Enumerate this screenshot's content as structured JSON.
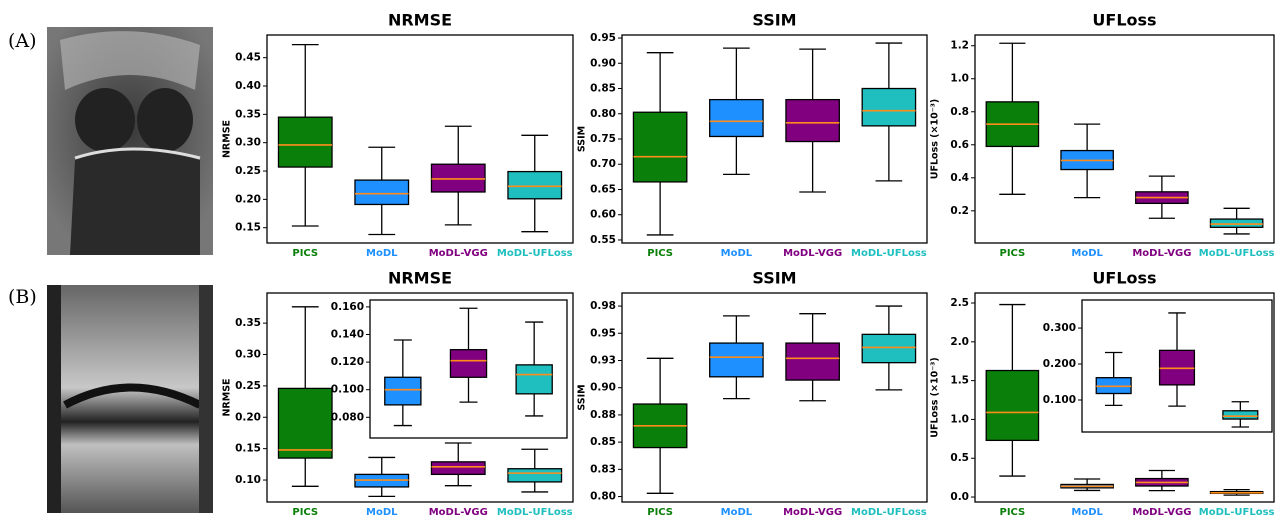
{
  "row_labels": [
    "(A)",
    "(B)"
  ],
  "chart_data": [
    {
      "type": "box",
      "title": "NRMSE",
      "ylabel": "NRMSE",
      "categories": [
        "PICS",
        "MoDL",
        "MoDL-VGG",
        "MoDL-UFLoss"
      ],
      "colors": [
        "#0a800a",
        "#1e90ff",
        "#800080",
        "#1fbfbf"
      ],
      "median_color": "#ff8c1a",
      "stats": [
        [
          0.153,
          0.257,
          0.296,
          0.345,
          0.473
        ],
        [
          0.138,
          0.191,
          0.21,
          0.234,
          0.292
        ],
        [
          0.155,
          0.213,
          0.236,
          0.262,
          0.329
        ],
        [
          0.143,
          0.201,
          0.223,
          0.249,
          0.313
        ]
      ],
      "ylim": [
        0.123,
        0.49
      ],
      "yticks": [
        {
          "value": 0.15,
          "label": "0.15"
        },
        {
          "value": 0.2,
          "label": "0.20"
        },
        {
          "value": 0.25,
          "label": "0.25"
        },
        {
          "value": 0.3,
          "label": "0.30"
        },
        {
          "value": 0.35,
          "label": "0.35"
        },
        {
          "value": 0.4,
          "label": "0.40"
        },
        {
          "value": 0.45,
          "label": "0.45"
        }
      ]
    },
    {
      "type": "box",
      "title": "SSIM",
      "ylabel": "SSIM",
      "categories": [
        "PICS",
        "MoDL",
        "MoDL-VGG",
        "MoDL-UFLoss"
      ],
      "colors": [
        "#0a800a",
        "#1e90ff",
        "#800080",
        "#1fbfbf"
      ],
      "median_color": "#ff8c1a",
      "stats": [
        [
          0.56,
          0.665,
          0.715,
          0.803,
          0.921
        ],
        [
          0.68,
          0.755,
          0.785,
          0.828,
          0.93
        ],
        [
          0.645,
          0.745,
          0.782,
          0.828,
          0.928
        ],
        [
          0.667,
          0.776,
          0.806,
          0.85,
          0.94
        ]
      ],
      "ylim": [
        0.544,
        0.956
      ],
      "yticks": [
        {
          "value": 0.55,
          "label": "0.55"
        },
        {
          "value": 0.6,
          "label": "0.60"
        },
        0.65,
        {
          "value": 0.7,
          "label": "0.70"
        },
        0.75,
        {
          "value": 0.8,
          "label": "0.80"
        },
        0.85,
        {
          "value": 0.9,
          "label": "0.90"
        },
        0.95
      ]
    },
    {
      "type": "box",
      "title": "UFLoss",
      "ylabel": "UFLoss (×10⁻³)",
      "categories": [
        "PICS",
        "MoDL",
        "MoDL-VGG",
        "MoDL-UFLoss"
      ],
      "colors": [
        "#0a800a",
        "#1e90ff",
        "#800080",
        "#1fbfbf"
      ],
      "median_color": "#ff8c1a",
      "stats": [
        [
          0.3,
          0.59,
          0.725,
          0.86,
          1.215
        ],
        [
          0.28,
          0.45,
          0.505,
          0.565,
          0.725
        ],
        [
          0.155,
          0.245,
          0.28,
          0.315,
          0.41
        ],
        [
          0.06,
          0.1,
          0.12,
          0.15,
          0.215
        ]
      ],
      "ylim": [
        0.005,
        1.265
      ],
      "yticks": [
        0.2,
        0.4,
        0.6,
        0.8,
        {
          "value": 1,
          "label": "1.0"
        },
        1.2
      ]
    },
    {
      "type": "box",
      "title": "NRMSE",
      "ylabel": "NRMSE",
      "categories": [
        "PICS",
        "MoDL",
        "MoDL-VGG",
        "MoDL-UFLoss"
      ],
      "colors": [
        "#0a800a",
        "#1e90ff",
        "#800080",
        "#1fbfbf"
      ],
      "median_color": "#ff8c1a",
      "stats": [
        [
          0.09,
          0.135,
          0.148,
          0.246,
          0.376
        ],
        [
          0.074,
          0.089,
          0.1,
          0.109,
          0.136
        ],
        [
          0.091,
          0.109,
          0.121,
          0.129,
          0.159
        ],
        [
          0.081,
          0.097,
          0.111,
          0.118,
          0.149
        ]
      ],
      "ylim": [
        0.065,
        0.398
      ],
      "yticks": [
        {
          "value": 0.1,
          "label": "0.10"
        },
        0.15,
        {
          "value": 0.2,
          "label": "0.20"
        },
        0.25,
        {
          "value": 0.3,
          "label": "0.30"
        },
        0.35
      ],
      "inset": {
        "ylim": [
          0.065,
          0.165
        ],
        "yticks": [
          {
            "value": 0.08,
            "label": "0.080"
          },
          {
            "value": 0.1,
            "label": "0.100"
          },
          {
            "value": 0.12,
            "label": "0.120"
          },
          {
            "value": 0.14,
            "label": "0.140"
          },
          {
            "value": 0.16,
            "label": "0.160"
          }
        ]
      }
    },
    {
      "type": "box",
      "title": "SSIM",
      "ylabel": "SSIM",
      "categories": [
        "PICS",
        "MoDL",
        "MoDL-VGG",
        "MoDL-UFLoss"
      ],
      "colors": [
        "#0a800a",
        "#1e90ff",
        "#800080",
        "#1fbfbf"
      ],
      "median_color": "#ff8c1a",
      "stats": [
        [
          0.803,
          0.845,
          0.865,
          0.885,
          0.927
        ],
        [
          0.89,
          0.91,
          0.928,
          0.941,
          0.966
        ],
        [
          0.888,
          0.907,
          0.927,
          0.941,
          0.968
        ],
        [
          0.898,
          0.923,
          0.937,
          0.949,
          0.975
        ]
      ],
      "ylim": [
        0.795,
        0.987
      ],
      "yticks": [
        {
          "value": 0.8,
          "label": "0.80"
        },
        {
          "value": 0.825,
          "label": "0.83"
        },
        0.85,
        {
          "value": 0.875,
          "label": "0.88"
        },
        {
          "value": 0.9,
          "label": "0.90"
        },
        {
          "value": 0.925,
          "label": "0.93"
        },
        0.95,
        {
          "value": 0.975,
          "label": "0.98"
        }
      ]
    },
    {
      "type": "box",
      "title": "UFLoss",
      "ylabel": "UFLoss (×10⁻³)",
      "categories": [
        "PICS",
        "MoDL",
        "MoDL-VGG",
        "MoDL-UFLoss"
      ],
      "colors": [
        "#0a800a",
        "#1e90ff",
        "#800080",
        "#1fbfbf"
      ],
      "median_color": "#ff8c1a",
      "stats": [
        [
          0.27,
          0.73,
          1.09,
          1.63,
          2.48
        ],
        [
          0.085,
          0.118,
          0.138,
          0.162,
          0.232
        ],
        [
          0.083,
          0.142,
          0.188,
          0.238,
          0.342
        ],
        [
          0.025,
          0.047,
          0.055,
          0.07,
          0.095
        ]
      ],
      "ylim": [
        -0.064,
        2.629
      ],
      "yticks": [
        {
          "value": 0,
          "label": "0.0"
        },
        0.5,
        {
          "value": 1,
          "label": "1.0"
        },
        1.5,
        {
          "value": 2,
          "label": "2.0"
        },
        2.5
      ],
      "inset": {
        "ylim": [
          0.011,
          0.378
        ],
        "yticks": [
          {
            "value": 0.1,
            "label": "0.100"
          },
          {
            "value": 0.2,
            "label": "0.200"
          },
          {
            "value": 0.3,
            "label": "0.300"
          }
        ]
      }
    }
  ]
}
